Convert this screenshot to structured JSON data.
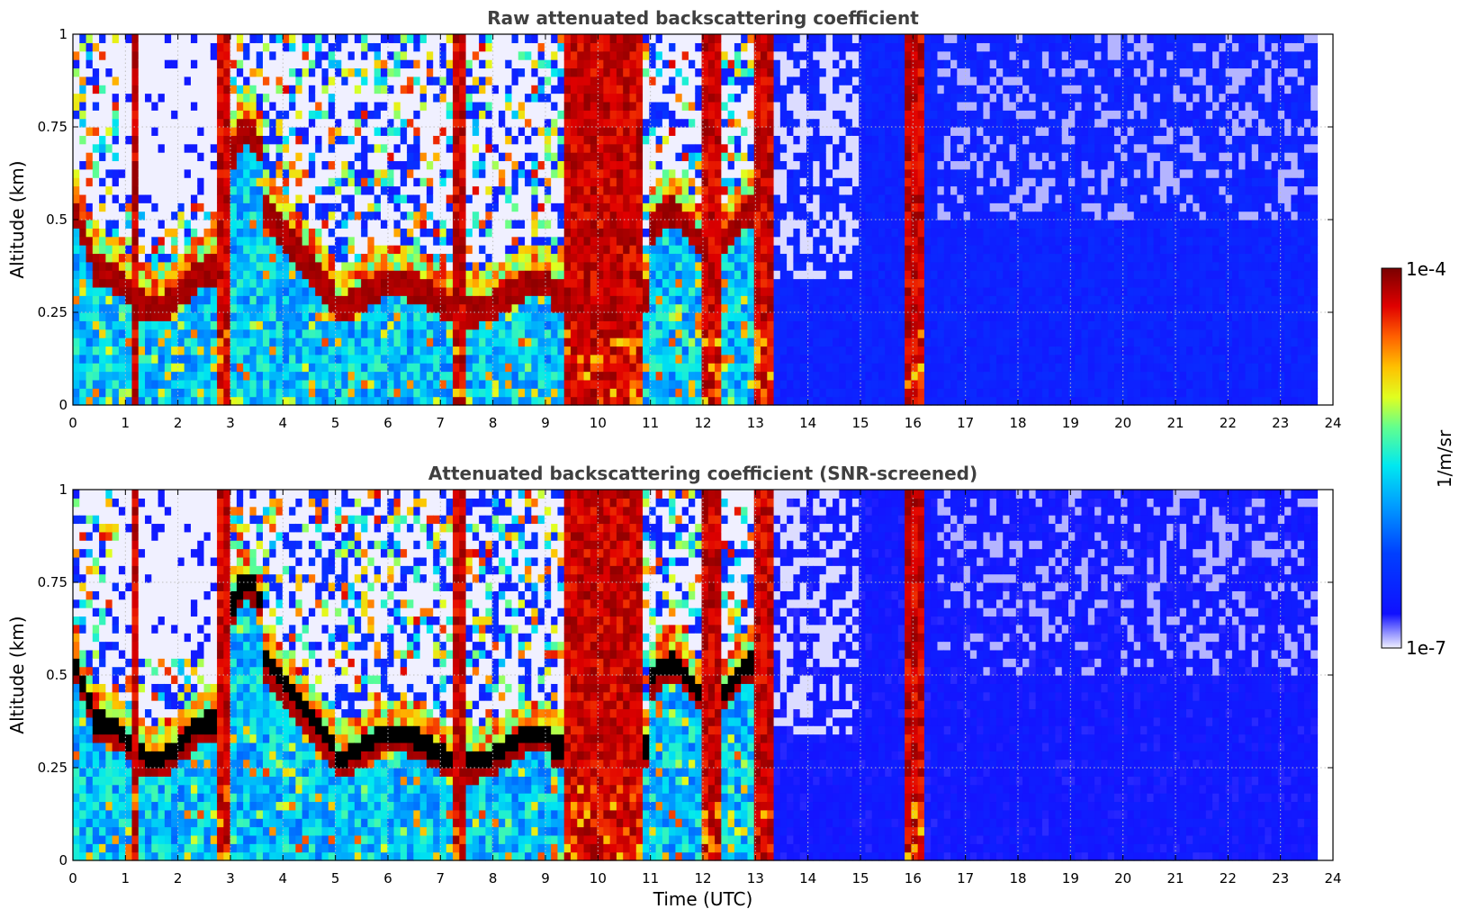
{
  "chart_data": [
    {
      "type": "heatmap",
      "title": "Raw attenuated backscattering coefficient",
      "xlabel": "",
      "ylabel": "Altitude (km)",
      "xlim": [
        0,
        24
      ],
      "ylim": [
        0,
        1
      ],
      "xticks": [
        "0",
        "1",
        "2",
        "3",
        "4",
        "5",
        "6",
        "7",
        "8",
        "9",
        "10",
        "11",
        "12",
        "13",
        "14",
        "15",
        "16",
        "17",
        "18",
        "19",
        "20",
        "21",
        "22",
        "23",
        "24"
      ],
      "yticks": [
        "0",
        "0.25",
        "0.5",
        "0.75",
        "1"
      ],
      "grid": true,
      "data_end_time": 23.7,
      "colorscale": "jet-like, log10 of 1/m/sr",
      "description_regions": [
        {
          "time": [
            0,
            2.8
          ],
          "cloud_base_km": 0.32,
          "above": "sparse/none"
        },
        {
          "time": [
            2.8,
            3.6
          ],
          "feature": "high backscatter column"
        },
        {
          "time": [
            3.6,
            9.1
          ],
          "cloud_base_km": 0.3
        },
        {
          "time": [
            9.1,
            11.0
          ],
          "feature": "saturated columns"
        },
        {
          "time": [
            11.0,
            13.3
          ],
          "cloud_base_km": 0.45
        },
        {
          "time": [
            13.3,
            23.7
          ],
          "feature": "clear air, low backscatter"
        },
        {
          "time": [
            15.8,
            16.2
          ],
          "feature": "saturated column"
        }
      ]
    },
    {
      "type": "heatmap",
      "title": "Attenuated backscattering coefficient (SNR-screened)",
      "xlabel": "Time (UTC)",
      "ylabel": "Altitude (km)",
      "xlim": [
        0,
        24
      ],
      "ylim": [
        0,
        1
      ],
      "xticks": [
        "0",
        "1",
        "2",
        "3",
        "4",
        "5",
        "6",
        "7",
        "8",
        "9",
        "10",
        "11",
        "12",
        "13",
        "14",
        "15",
        "16",
        "17",
        "18",
        "19",
        "20",
        "21",
        "22",
        "23",
        "24"
      ],
      "yticks": [
        "0",
        "0.25",
        "0.5",
        "0.75",
        "1"
      ],
      "grid": true,
      "data_end_time": 23.7,
      "screened_color": "#000000"
    }
  ],
  "colorbar": {
    "label": "1/m/sr",
    "max_label": "1e-4",
    "min_label": "1e-7",
    "colors": [
      "#e8e8ff",
      "#1a1aff",
      "#0050ff",
      "#00a0ff",
      "#00e0ff",
      "#40ffb0",
      "#b0ff40",
      "#ffff00",
      "#ffb000",
      "#ff5000",
      "#e00000",
      "#800000"
    ]
  }
}
